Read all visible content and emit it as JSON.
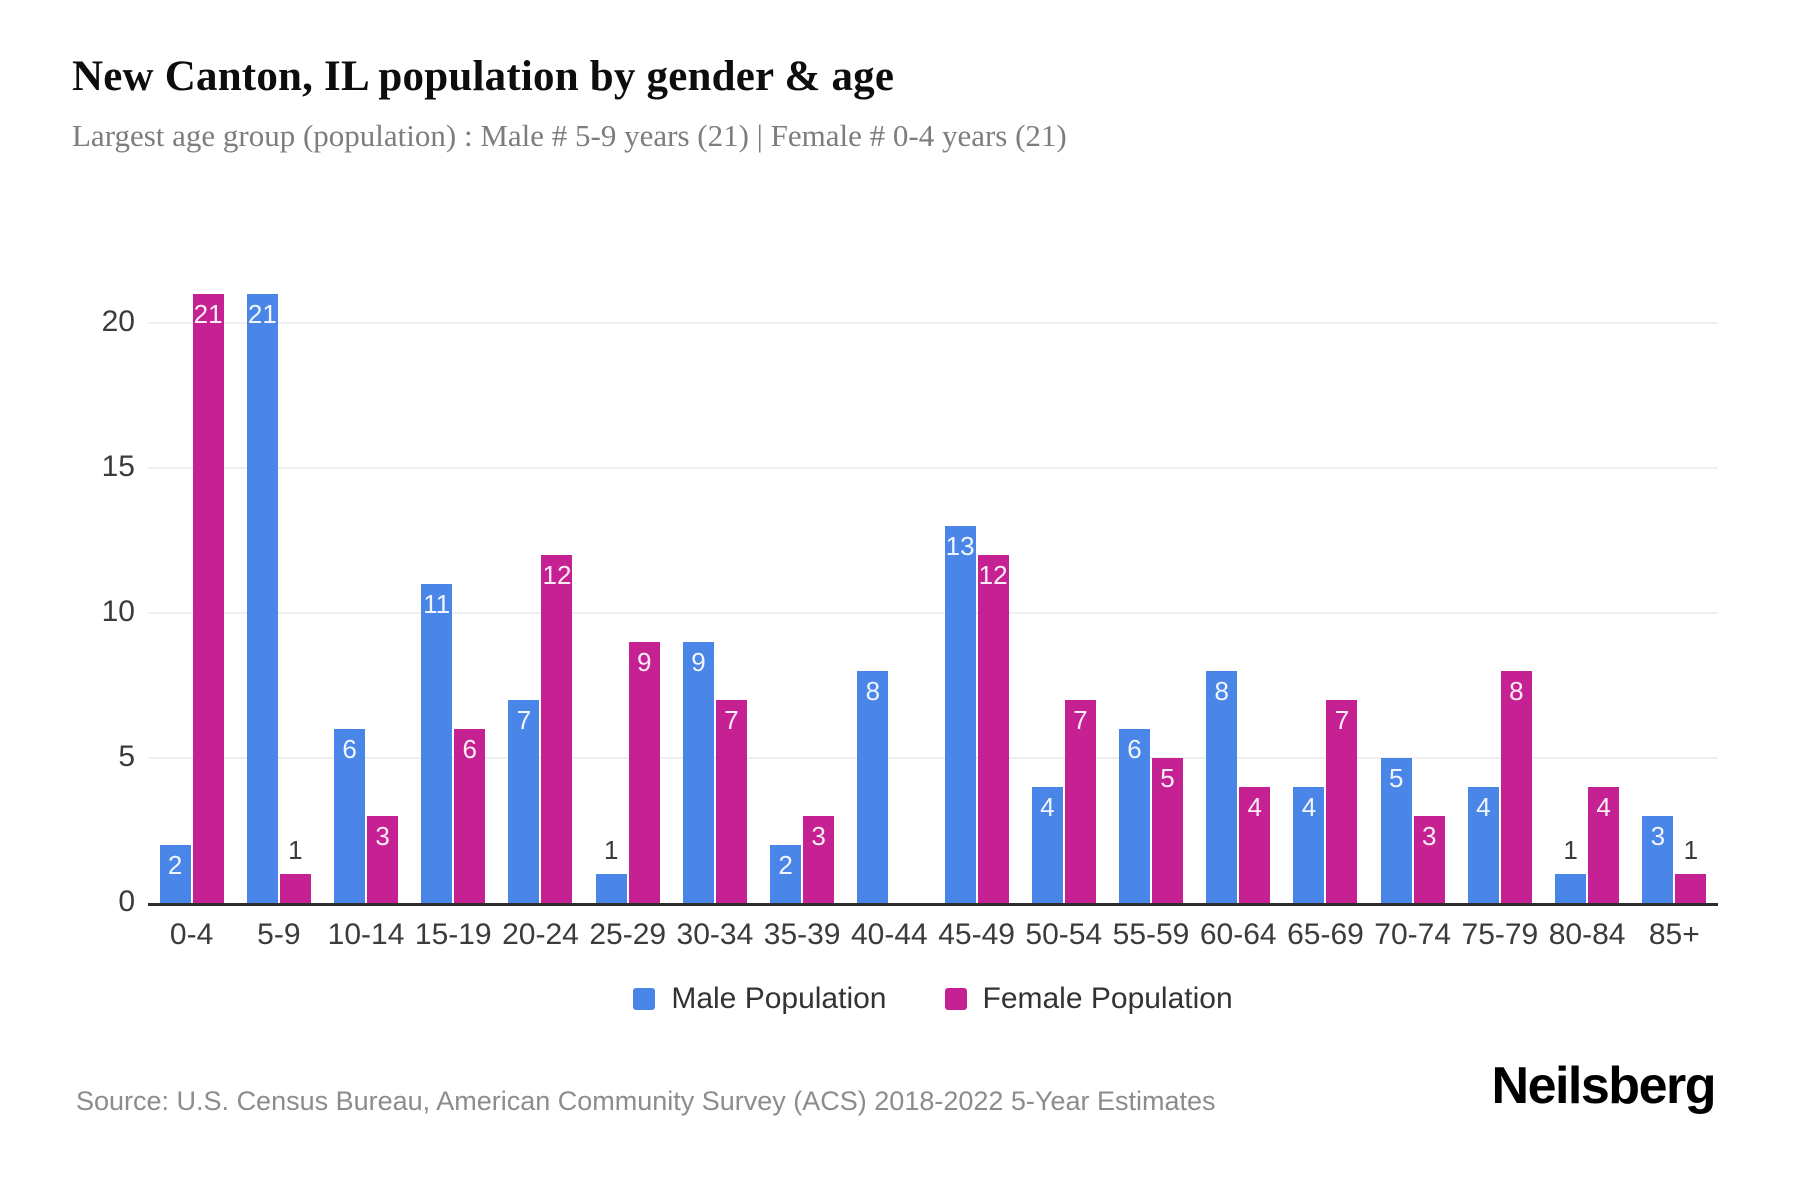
{
  "header": {
    "title": "New Canton, IL population by gender & age",
    "subtitle": "Largest age group (population) : Male # 5-9 years (21) | Female # 0-4 years (21)"
  },
  "legend": {
    "male": "Male Population",
    "female": "Female Population"
  },
  "footer": {
    "source": "Source: U.S. Census Bureau, American Community Survey (ACS) 2018-2022 5-Year Estimates",
    "brand": "Neilsberg"
  },
  "colors": {
    "male": "#4a86e8",
    "female": "#c62192",
    "gridline": "#efefef",
    "axis_line": "#2d2d2d",
    "tick_text": "#3b3b3b",
    "subtitle_text": "#7d7d7d",
    "source_text": "#8c8c8c"
  },
  "chart_data": {
    "type": "bar",
    "title": "New Canton, IL population by gender & age",
    "subtitle": "Largest age group (population) : Male # 5-9 years (21) | Female # 0-4 years (21)",
    "categories": [
      "0-4",
      "5-9",
      "10-14",
      "15-19",
      "20-24",
      "25-29",
      "30-34",
      "35-39",
      "40-44",
      "45-49",
      "50-54",
      "55-59",
      "60-64",
      "65-69",
      "70-74",
      "75-79",
      "80-84",
      "85+"
    ],
    "series": [
      {
        "name": "Male Population",
        "color": "#4a86e8",
        "values": [
          2,
          21,
          6,
          11,
          7,
          1,
          9,
          2,
          8,
          13,
          4,
          6,
          8,
          4,
          5,
          4,
          1,
          3
        ]
      },
      {
        "name": "Female Population",
        "color": "#c62192",
        "values": [
          21,
          1,
          3,
          6,
          12,
          9,
          7,
          3,
          0,
          12,
          7,
          5,
          4,
          7,
          3,
          8,
          4,
          1
        ]
      }
    ],
    "xlabel": "",
    "ylabel": "",
    "ylim": [
      0,
      21
    ],
    "yticks": [
      0,
      5,
      10,
      15,
      20
    ],
    "grid": "horizontal",
    "legend_position": "bottom",
    "value_labels": "inside bar top (white); values of 1 shown above bar in dark gray; zero-value bars omitted"
  }
}
